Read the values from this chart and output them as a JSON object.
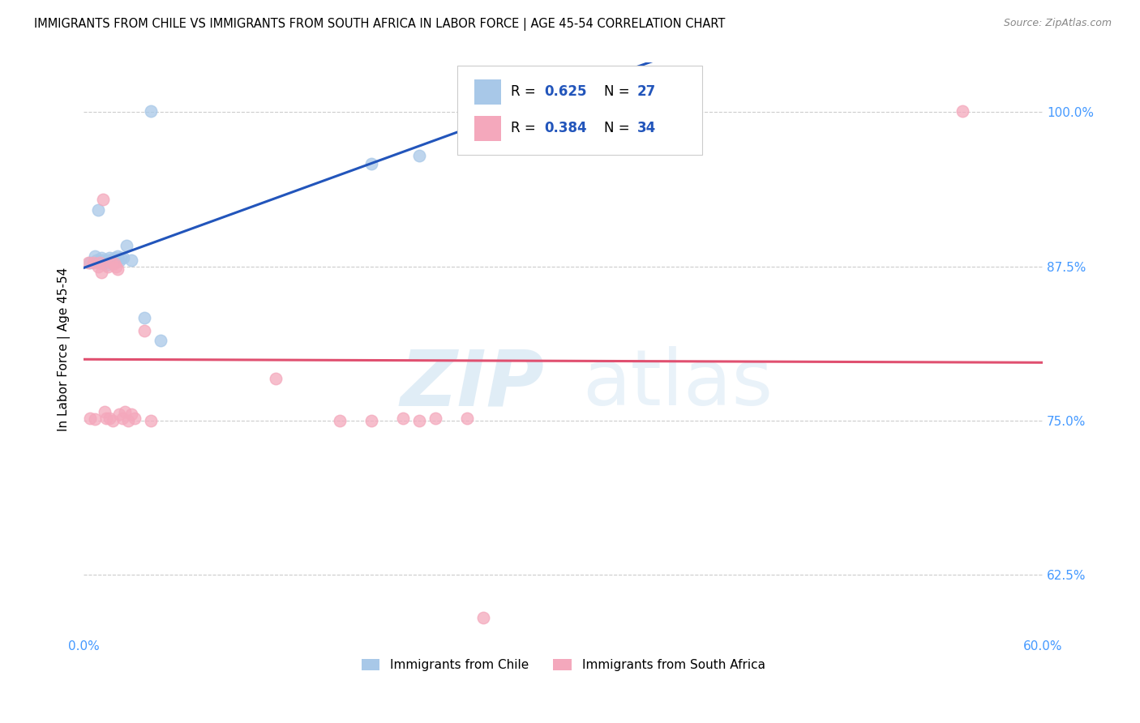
{
  "title": "IMMIGRANTS FROM CHILE VS IMMIGRANTS FROM SOUTH AFRICA IN LABOR FORCE | AGE 45-54 CORRELATION CHART",
  "source": "Source: ZipAtlas.com",
  "ylabel": "In Labor Force | Age 45-54",
  "xlim": [
    0.0,
    0.6
  ],
  "ylim": [
    0.575,
    1.04
  ],
  "xticks": [
    0.0,
    0.1,
    0.2,
    0.3,
    0.4,
    0.5,
    0.6
  ],
  "xticklabels": [
    "0.0%",
    "",
    "",
    "",
    "",
    "",
    "60.0%"
  ],
  "yticks": [
    0.625,
    0.75,
    0.875,
    1.0
  ],
  "yticklabels": [
    "62.5%",
    "75.0%",
    "87.5%",
    "100.0%"
  ],
  "chile_color": "#a8c8e8",
  "sa_color": "#f4a8bc",
  "chile_line_color": "#2255bb",
  "sa_line_color": "#e05070",
  "R_chile": 0.625,
  "N_chile": 27,
  "R_sa": 0.384,
  "N_sa": 34,
  "legend_label_chile": "Immigrants from Chile",
  "legend_label_sa": "Immigrants from South Africa",
  "chile_x": [
    0.004,
    0.007,
    0.008,
    0.009,
    0.01,
    0.011,
    0.012,
    0.013,
    0.014,
    0.015,
    0.016,
    0.017,
    0.018,
    0.019,
    0.02,
    0.021,
    0.022,
    0.023,
    0.025,
    0.027,
    0.03,
    0.038,
    0.042,
    0.048,
    0.18,
    0.21,
    0.24
  ],
  "chile_y": [
    0.878,
    0.883,
    0.88,
    0.921,
    0.878,
    0.882,
    0.88,
    0.878,
    0.876,
    0.88,
    0.882,
    0.879,
    0.878,
    0.882,
    0.88,
    0.883,
    0.879,
    0.882,
    0.882,
    0.892,
    0.88,
    0.833,
    1.001,
    0.815,
    0.958,
    0.965,
    1.001
  ],
  "sa_x": [
    0.003,
    0.004,
    0.006,
    0.007,
    0.009,
    0.01,
    0.011,
    0.012,
    0.013,
    0.014,
    0.015,
    0.016,
    0.017,
    0.018,
    0.019,
    0.02,
    0.021,
    0.022,
    0.024,
    0.026,
    0.028,
    0.03,
    0.032,
    0.038,
    0.042,
    0.12,
    0.16,
    0.18,
    0.2,
    0.21,
    0.22,
    0.24,
    0.25,
    0.55
  ],
  "sa_y": [
    0.878,
    0.752,
    0.878,
    0.751,
    0.875,
    0.878,
    0.87,
    0.929,
    0.757,
    0.752,
    0.875,
    0.752,
    0.878,
    0.75,
    0.877,
    0.875,
    0.873,
    0.755,
    0.752,
    0.757,
    0.75,
    0.755,
    0.752,
    0.823,
    0.75,
    0.784,
    0.75,
    0.75,
    0.752,
    0.75,
    0.752,
    0.752,
    0.59,
    1.001
  ]
}
